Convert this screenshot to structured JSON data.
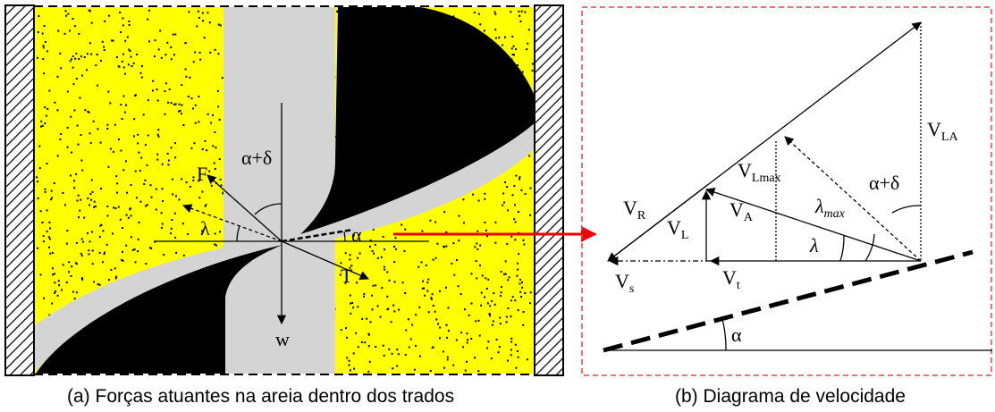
{
  "left_panel": {
    "labels": {
      "force_f": "F",
      "angle_alpha_delta": "α+δ",
      "angle_lambda": "λ",
      "angle_alpha": "α",
      "force_t": "T",
      "weight": "w"
    },
    "caption": "(a)  Forças atuantes na areia dentro dos trados"
  },
  "right_panel": {
    "labels": {
      "v_r": {
        "base": "V",
        "sub": "R"
      },
      "v_l": {
        "base": "V",
        "sub": "L"
      },
      "v_a": {
        "base": "V",
        "sub": "A"
      },
      "v_lmax": {
        "base": "V",
        "sub": "Lmax"
      },
      "lambda_max": {
        "base": "λ",
        "sub": "max"
      },
      "lambda": "λ",
      "v_la": {
        "base": "V",
        "sub": "LA"
      },
      "alpha_delta": "α+δ",
      "v_s": {
        "base": "V",
        "sub": "s"
      },
      "v_t": {
        "base": "V",
        "sub": "t"
      },
      "alpha": "α"
    },
    "caption": "(b)  Diagrama de velocidade"
  }
}
